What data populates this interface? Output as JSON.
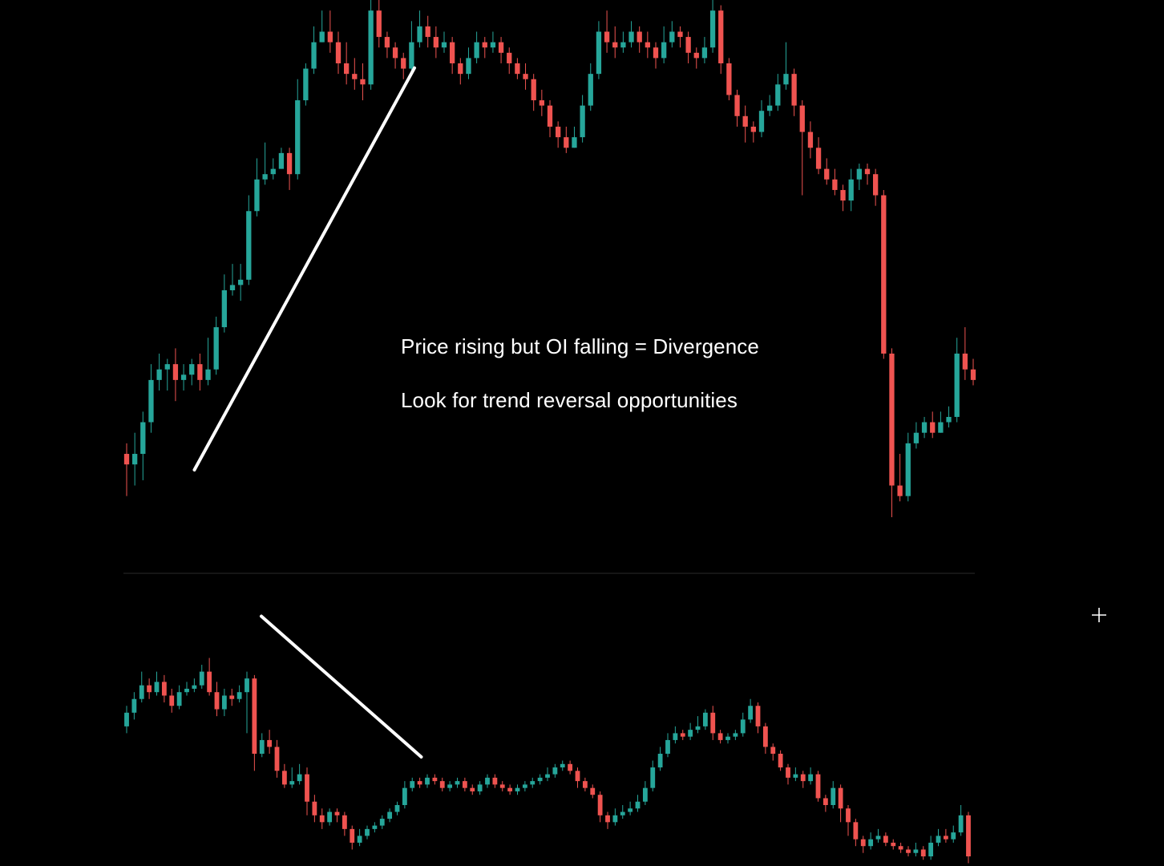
{
  "colors": {
    "background": "#000000",
    "bullish": "#26a69a",
    "bearish": "#ef5350",
    "trendline": "#ffffff",
    "separator": "#2a2a2a"
  },
  "annotations": {
    "line1": "Price rising but OI falling = Divergence",
    "line2": "Look for trend reversal opportunities"
  },
  "cursor": {
    "icon": "crosshair-cursor-icon"
  },
  "chart_data": [
    {
      "type": "candlestick",
      "pane": "price",
      "title": "",
      "xlabel": "",
      "ylabel": "",
      "ylim": [
        0,
        100
      ],
      "grid": false,
      "trendline": {
        "direction": "up",
        "from": [
          8,
          17
        ],
        "to": [
          34,
          88
        ]
      },
      "candles": [
        [
          26,
          24,
          28,
          18
        ],
        [
          24,
          26,
          30,
          20
        ],
        [
          26,
          32,
          34,
          21
        ],
        [
          32,
          40,
          43,
          30
        ],
        [
          40,
          42,
          45,
          38
        ],
        [
          42,
          43,
          44,
          38
        ],
        [
          43,
          40,
          46,
          36
        ],
        [
          40,
          41,
          43,
          38
        ],
        [
          41,
          43,
          44,
          39
        ],
        [
          43,
          40,
          45,
          38
        ],
        [
          40,
          42,
          48,
          39
        ],
        [
          42,
          50,
          52,
          41
        ],
        [
          50,
          57,
          60,
          49
        ],
        [
          57,
          58,
          62,
          56
        ],
        [
          58,
          59,
          62,
          55
        ],
        [
          59,
          72,
          75,
          58
        ],
        [
          72,
          78,
          82,
          71
        ],
        [
          78,
          79,
          85,
          77
        ],
        [
          79,
          80,
          82,
          78
        ],
        [
          80,
          83,
          84,
          80
        ],
        [
          83,
          79,
          84,
          76
        ],
        [
          79,
          93,
          97,
          78
        ],
        [
          93,
          99,
          100,
          92
        ],
        [
          99,
          104,
          107,
          98
        ],
        [
          104,
          106,
          110,
          104
        ],
        [
          106,
          104,
          110,
          102
        ],
        [
          104,
          100,
          106,
          98
        ],
        [
          100,
          98,
          104,
          96
        ],
        [
          98,
          97,
          101,
          95
        ],
        [
          97,
          96,
          100,
          93
        ],
        [
          96,
          110,
          113,
          95
        ],
        [
          110,
          105,
          112,
          103
        ],
        [
          105,
          103,
          106,
          101
        ],
        [
          103,
          101,
          104,
          99
        ],
        [
          101,
          99,
          102,
          97
        ],
        [
          99,
          104,
          108,
          98
        ],
        [
          104,
          107,
          110,
          103
        ],
        [
          107,
          105,
          109,
          103
        ],
        [
          105,
          103,
          107,
          101
        ],
        [
          103,
          104,
          106,
          102
        ],
        [
          104,
          100,
          105,
          98
        ],
        [
          100,
          98,
          101,
          96
        ],
        [
          98,
          101,
          103,
          97
        ],
        [
          101,
          104,
          106,
          100
        ],
        [
          104,
          103,
          105,
          101
        ],
        [
          103,
          104,
          106,
          102
        ],
        [
          104,
          102,
          105,
          100
        ],
        [
          102,
          100,
          103,
          98
        ],
        [
          100,
          98,
          101,
          97
        ],
        [
          98,
          97,
          100,
          95
        ],
        [
          97,
          93,
          98,
          91
        ],
        [
          93,
          92,
          95,
          90
        ],
        [
          92,
          88,
          93,
          86
        ],
        [
          88,
          86,
          89,
          84
        ],
        [
          86,
          84,
          88,
          83
        ],
        [
          84,
          86,
          88,
          84
        ],
        [
          86,
          92,
          94,
          85
        ],
        [
          92,
          98,
          100,
          91
        ],
        [
          98,
          106,
          108,
          97
        ],
        [
          106,
          104,
          110,
          102
        ],
        [
          104,
          103,
          107,
          101
        ],
        [
          103,
          104,
          106,
          102
        ],
        [
          104,
          106,
          108,
          103
        ],
        [
          106,
          104,
          107,
          102
        ],
        [
          104,
          103,
          106,
          101
        ],
        [
          103,
          101,
          104,
          99
        ],
        [
          101,
          104,
          107,
          100
        ],
        [
          104,
          106,
          108,
          103
        ],
        [
          106,
          105,
          107,
          103
        ],
        [
          105,
          102,
          106,
          100
        ],
        [
          102,
          101,
          103,
          99
        ],
        [
          101,
          103,
          105,
          100
        ],
        [
          103,
          110,
          112,
          102
        ],
        [
          110,
          100,
          111,
          98
        ],
        [
          100,
          94,
          101,
          93
        ],
        [
          94,
          90,
          95,
          88
        ],
        [
          90,
          88,
          92,
          85
        ],
        [
          88,
          87,
          89,
          85
        ],
        [
          87,
          91,
          93,
          86
        ],
        [
          91,
          92,
          94,
          90
        ],
        [
          92,
          96,
          98,
          91
        ],
        [
          96,
          98,
          104,
          95
        ],
        [
          98,
          92,
          99,
          90
        ],
        [
          92,
          87,
          93,
          75
        ],
        [
          87,
          84,
          89,
          82
        ],
        [
          84,
          80,
          86,
          79
        ],
        [
          80,
          78,
          82,
          77
        ],
        [
          78,
          76,
          80,
          75
        ],
        [
          76,
          74,
          77,
          72
        ],
        [
          74,
          78,
          80,
          72
        ],
        [
          78,
          80,
          81,
          76
        ],
        [
          80,
          79,
          81,
          77
        ],
        [
          79,
          75,
          80,
          73
        ],
        [
          75,
          45,
          76,
          44
        ],
        [
          45,
          20,
          46,
          14
        ],
        [
          20,
          18,
          26,
          17
        ],
        [
          18,
          28,
          30,
          17
        ],
        [
          28,
          30,
          32,
          27
        ],
        [
          30,
          32,
          33,
          29
        ],
        [
          32,
          30,
          34,
          29
        ],
        [
          30,
          32,
          34,
          30
        ],
        [
          32,
          33,
          35,
          31
        ],
        [
          33,
          45,
          48,
          32
        ],
        [
          45,
          42,
          50,
          40
        ],
        [
          42,
          40,
          44,
          39
        ]
      ]
    },
    {
      "type": "candlestick",
      "pane": "open_interest",
      "title": "",
      "xlabel": "",
      "ylabel": "",
      "ylim": [
        0,
        100
      ],
      "grid": false,
      "trendline": {
        "direction": "down",
        "from": [
          16,
          87
        ],
        "to": [
          35,
          38
        ]
      },
      "candles": [
        [
          68,
          72,
          74,
          66
        ],
        [
          72,
          76,
          78,
          70
        ],
        [
          76,
          80,
          84,
          75
        ],
        [
          80,
          78,
          82,
          76
        ],
        [
          78,
          81,
          84,
          77
        ],
        [
          81,
          77,
          83,
          75
        ],
        [
          77,
          74,
          79,
          72
        ],
        [
          74,
          78,
          80,
          73
        ],
        [
          78,
          79,
          81,
          77
        ],
        [
          79,
          80,
          82,
          78
        ],
        [
          80,
          84,
          86,
          79
        ],
        [
          84,
          78,
          88,
          77
        ],
        [
          78,
          73,
          81,
          71
        ],
        [
          73,
          77,
          79,
          71
        ],
        [
          77,
          76,
          79,
          74
        ],
        [
          76,
          78,
          80,
          75
        ],
        [
          78,
          82,
          84,
          66
        ],
        [
          82,
          60,
          83,
          55
        ],
        [
          60,
          64,
          66,
          59
        ],
        [
          64,
          62,
          67,
          60
        ],
        [
          62,
          55,
          64,
          53
        ],
        [
          55,
          51,
          57,
          50
        ],
        [
          51,
          52,
          56,
          50
        ],
        [
          52,
          54,
          57,
          51
        ],
        [
          54,
          46,
          56,
          42
        ],
        [
          46,
          42,
          48,
          40
        ],
        [
          42,
          40,
          44,
          38
        ],
        [
          40,
          43,
          44,
          39
        ],
        [
          43,
          42,
          44,
          40
        ],
        [
          42,
          38,
          43,
          36
        ],
        [
          38,
          34,
          39,
          32
        ],
        [
          34,
          36,
          38,
          33
        ],
        [
          36,
          38,
          39,
          35
        ],
        [
          38,
          39,
          40,
          37
        ],
        [
          39,
          41,
          42,
          38
        ],
        [
          41,
          43,
          44,
          40
        ],
        [
          43,
          45,
          46,
          42
        ],
        [
          45,
          50,
          52,
          44
        ],
        [
          50,
          52,
          53,
          49
        ],
        [
          52,
          51,
          53,
          50
        ],
        [
          51,
          53,
          54,
          50
        ],
        [
          53,
          52,
          54,
          51
        ],
        [
          52,
          50,
          53,
          49
        ],
        [
          50,
          51,
          52,
          49
        ],
        [
          51,
          52,
          53,
          50
        ],
        [
          52,
          50,
          53,
          49
        ],
        [
          50,
          49,
          51,
          48
        ],
        [
          49,
          51,
          52,
          48
        ],
        [
          51,
          53,
          54,
          50
        ],
        [
          53,
          51,
          54,
          50
        ],
        [
          51,
          50,
          52,
          49
        ],
        [
          50,
          49,
          51,
          48
        ],
        [
          49,
          50,
          51,
          48
        ],
        [
          50,
          51,
          52,
          49
        ],
        [
          51,
          52,
          53,
          50
        ],
        [
          52,
          53,
          54,
          51
        ],
        [
          53,
          54,
          56,
          52
        ],
        [
          54,
          56,
          57,
          53
        ],
        [
          56,
          57,
          58,
          55
        ],
        [
          57,
          55,
          58,
          54
        ],
        [
          55,
          52,
          56,
          50
        ],
        [
          52,
          50,
          53,
          49
        ],
        [
          50,
          48,
          51,
          47
        ],
        [
          48,
          42,
          49,
          40
        ],
        [
          42,
          40,
          43,
          38
        ],
        [
          40,
          42,
          44,
          39
        ],
        [
          42,
          43,
          45,
          41
        ],
        [
          43,
          44,
          46,
          42
        ],
        [
          44,
          46,
          48,
          43
        ],
        [
          46,
          50,
          52,
          45
        ],
        [
          50,
          56,
          58,
          49
        ],
        [
          56,
          60,
          62,
          55
        ],
        [
          60,
          64,
          66,
          59
        ],
        [
          64,
          66,
          68,
          63
        ],
        [
          66,
          65,
          67,
          64
        ],
        [
          65,
          67,
          69,
          64
        ],
        [
          67,
          68,
          71,
          66
        ],
        [
          68,
          72,
          73,
          67
        ],
        [
          72,
          66,
          74,
          64
        ],
        [
          66,
          64,
          67,
          63
        ],
        [
          64,
          65,
          66,
          63
        ],
        [
          65,
          66,
          67,
          64
        ],
        [
          66,
          70,
          72,
          65
        ],
        [
          70,
          74,
          76,
          69
        ],
        [
          74,
          68,
          75,
          66
        ],
        [
          68,
          62,
          69,
          60
        ],
        [
          62,
          60,
          63,
          58
        ],
        [
          60,
          56,
          61,
          55
        ],
        [
          56,
          53,
          57,
          51
        ],
        [
          53,
          54,
          56,
          52
        ],
        [
          54,
          52,
          55,
          50
        ],
        [
          52,
          54,
          56,
          51
        ],
        [
          54,
          47,
          55,
          46
        ],
        [
          47,
          45,
          48,
          43
        ],
        [
          45,
          50,
          52,
          44
        ],
        [
          50,
          44,
          51,
          40
        ],
        [
          44,
          40,
          45,
          36
        ],
        [
          40,
          35,
          41,
          33
        ],
        [
          35,
          33,
          36,
          31
        ],
        [
          33,
          35,
          37,
          32
        ],
        [
          35,
          36,
          38,
          34
        ],
        [
          36,
          34,
          37,
          33
        ],
        [
          34,
          33,
          35,
          32
        ],
        [
          33,
          32,
          34,
          31
        ],
        [
          32,
          31,
          33,
          30
        ],
        [
          31,
          32,
          34,
          30
        ],
        [
          32,
          30,
          33,
          29
        ],
        [
          30,
          34,
          36,
          29
        ],
        [
          34,
          36,
          38,
          33
        ],
        [
          36,
          35,
          38,
          34
        ],
        [
          35,
          37,
          39,
          34
        ],
        [
          37,
          42,
          45,
          36
        ],
        [
          42,
          30,
          43,
          28
        ]
      ]
    }
  ]
}
